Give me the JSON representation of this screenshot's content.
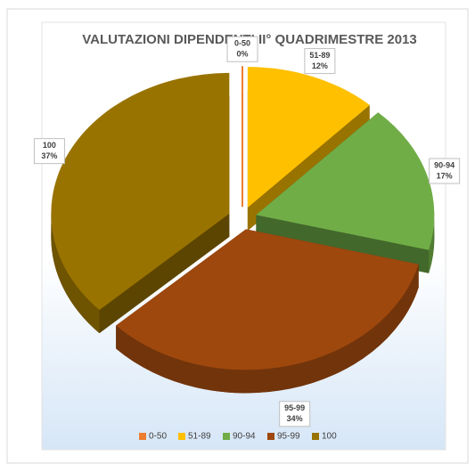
{
  "chart_data": {
    "type": "pie3d",
    "title": "VALUTAZIONI DIPENDENTI II° QUADRIMESTRE 2013",
    "categories": [
      "0-50",
      "51-89",
      "90-94",
      "95-99",
      "100"
    ],
    "values": [
      0,
      12,
      17,
      34,
      37
    ],
    "value_labels": [
      "0%",
      "12%",
      "17%",
      "34%",
      "37%"
    ],
    "colors": [
      "#ed7d31",
      "#ffc000",
      "#70ad47",
      "#9e480e",
      "#997300"
    ],
    "legend": "bottom"
  }
}
